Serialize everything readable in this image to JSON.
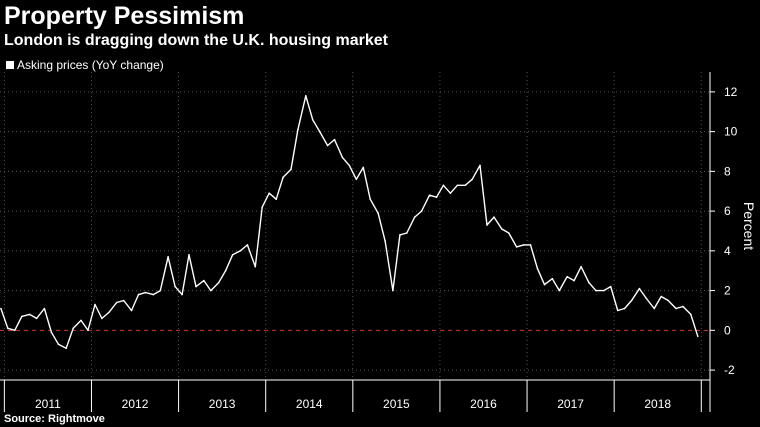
{
  "header": {
    "title": "Property Pessimism",
    "subtitle": "London is dragging down the U.K. housing market"
  },
  "legend": {
    "label": "Asking prices (YoY change)"
  },
  "footer": {
    "source": "Source: Rightmove"
  },
  "colors": {
    "background": "#000000",
    "line": "#ffffff",
    "zero_line": "#d03a2b",
    "grid": "#555555"
  },
  "chart_data": {
    "type": "line",
    "title": "Property Pessimism",
    "subtitle": "London is dragging down the U.K. housing market",
    "ylabel": "Percent",
    "xlabel": "",
    "ylim": [
      -2.5,
      13
    ],
    "yticks": [
      -2,
      0,
      2,
      4,
      6,
      8,
      10,
      12
    ],
    "ytick_labels": [
      "-2",
      "0",
      "2",
      "4",
      "6",
      "8",
      "10",
      "12"
    ],
    "xlim": [
      2010.95,
      2019.1
    ],
    "year_labels": [
      "2011",
      "2012",
      "2013",
      "2014",
      "2015",
      "2016",
      "2017",
      "2018"
    ],
    "grid": true,
    "legend_position": "top-left",
    "series": [
      {
        "name": "Asking prices (YoY change)",
        "values": [
          [
            2010.96,
            1.1
          ],
          [
            2011.04,
            0.1
          ],
          [
            2011.12,
            0.0
          ],
          [
            2011.2,
            0.7
          ],
          [
            2011.29,
            0.8
          ],
          [
            2011.37,
            0.6
          ],
          [
            2011.46,
            1.1
          ],
          [
            2011.54,
            -0.1
          ],
          [
            2011.62,
            -0.7
          ],
          [
            2011.71,
            -0.9
          ],
          [
            2011.79,
            0.1
          ],
          [
            2011.88,
            0.5
          ],
          [
            2011.96,
            0.0
          ],
          [
            2012.04,
            1.3
          ],
          [
            2012.12,
            0.6
          ],
          [
            2012.2,
            0.9
          ],
          [
            2012.29,
            1.4
          ],
          [
            2012.37,
            1.5
          ],
          [
            2012.46,
            1.0
          ],
          [
            2012.54,
            1.8
          ],
          [
            2012.62,
            1.9
          ],
          [
            2012.71,
            1.8
          ],
          [
            2012.79,
            2.0
          ],
          [
            2012.88,
            3.7
          ],
          [
            2012.96,
            2.2
          ],
          [
            2013.04,
            1.8
          ],
          [
            2013.12,
            3.8
          ],
          [
            2013.2,
            2.2
          ],
          [
            2013.29,
            2.5
          ],
          [
            2013.37,
            2.0
          ],
          [
            2013.46,
            2.4
          ],
          [
            2013.54,
            3.0
          ],
          [
            2013.62,
            3.8
          ],
          [
            2013.71,
            4.0
          ],
          [
            2013.79,
            4.3
          ],
          [
            2013.88,
            3.2
          ],
          [
            2013.96,
            6.2
          ],
          [
            2014.04,
            6.9
          ],
          [
            2014.12,
            6.6
          ],
          [
            2014.2,
            7.7
          ],
          [
            2014.29,
            8.1
          ],
          [
            2014.37,
            10.1
          ],
          [
            2014.46,
            11.8
          ],
          [
            2014.54,
            10.6
          ],
          [
            2014.62,
            10.0
          ],
          [
            2014.71,
            9.3
          ],
          [
            2014.79,
            9.6
          ],
          [
            2014.88,
            8.7
          ],
          [
            2014.96,
            8.3
          ],
          [
            2015.04,
            7.6
          ],
          [
            2015.12,
            8.2
          ],
          [
            2015.2,
            6.6
          ],
          [
            2015.29,
            5.9
          ],
          [
            2015.37,
            4.5
          ],
          [
            2015.46,
            2.0
          ],
          [
            2015.54,
            4.8
          ],
          [
            2015.62,
            4.9
          ],
          [
            2015.71,
            5.7
          ],
          [
            2015.79,
            6.0
          ],
          [
            2015.88,
            6.8
          ],
          [
            2015.96,
            6.7
          ],
          [
            2016.04,
            7.3
          ],
          [
            2016.12,
            6.9
          ],
          [
            2016.2,
            7.3
          ],
          [
            2016.29,
            7.3
          ],
          [
            2016.37,
            7.6
          ],
          [
            2016.46,
            8.3
          ],
          [
            2016.54,
            5.3
          ],
          [
            2016.62,
            5.7
          ],
          [
            2016.71,
            5.1
          ],
          [
            2016.79,
            4.9
          ],
          [
            2016.88,
            4.2
          ],
          [
            2016.96,
            4.3
          ],
          [
            2017.04,
            4.3
          ],
          [
            2017.12,
            3.1
          ],
          [
            2017.2,
            2.3
          ],
          [
            2017.29,
            2.6
          ],
          [
            2017.37,
            2.0
          ],
          [
            2017.46,
            2.7
          ],
          [
            2017.54,
            2.5
          ],
          [
            2017.62,
            3.2
          ],
          [
            2017.71,
            2.4
          ],
          [
            2017.79,
            2.0
          ],
          [
            2017.88,
            2.0
          ],
          [
            2017.96,
            2.2
          ],
          [
            2018.04,
            1.0
          ],
          [
            2018.12,
            1.1
          ],
          [
            2018.2,
            1.5
          ],
          [
            2018.29,
            2.1
          ],
          [
            2018.37,
            1.6
          ],
          [
            2018.46,
            1.1
          ],
          [
            2018.54,
            1.7
          ],
          [
            2018.62,
            1.5
          ],
          [
            2018.71,
            1.1
          ],
          [
            2018.79,
            1.2
          ],
          [
            2018.88,
            0.8
          ],
          [
            2018.96,
            -0.3
          ]
        ]
      }
    ]
  }
}
